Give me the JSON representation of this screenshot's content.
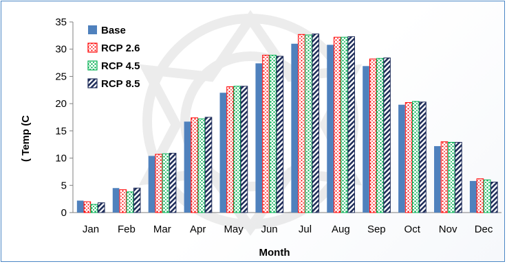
{
  "chart_data": {
    "type": "bar",
    "xlabel": "Month",
    "ylabel": "( Temp (C",
    "ylim": [
      0,
      35
    ],
    "yticks": [
      0,
      5,
      10,
      15,
      20,
      25,
      30,
      35
    ],
    "grid": false,
    "legend_position": "top-left",
    "categories": [
      "Jan",
      "Feb",
      "Mar",
      "Apr",
      "May",
      "Jun",
      "Jul",
      "Aug",
      "Sep",
      "Oct",
      "Nov",
      "Dec"
    ],
    "series": [
      {
        "name": "Base",
        "color": "#4f81bd",
        "pattern": "solid",
        "values": [
          2.2,
          4.5,
          10.4,
          16.7,
          22.0,
          27.4,
          31.0,
          30.8,
          26.9,
          19.8,
          12.2,
          5.8
        ]
      },
      {
        "name": "RCP 2.6",
        "color": "#ff0000",
        "pattern": "dots",
        "values": [
          2.0,
          4.2,
          10.7,
          17.4,
          23.1,
          28.9,
          32.7,
          32.2,
          28.2,
          20.2,
          13.0,
          6.2
        ]
      },
      {
        "name": "RCP 4.5",
        "color": "#00b050",
        "pattern": "dots",
        "values": [
          1.5,
          3.8,
          10.8,
          17.2,
          23.2,
          28.9,
          32.6,
          32.2,
          28.3,
          20.4,
          12.9,
          6.0
        ]
      },
      {
        "name": "RCP 8.5",
        "color": "#1f2d5a",
        "pattern": "diagonal",
        "values": [
          1.8,
          4.5,
          10.9,
          17.5,
          23.2,
          28.7,
          32.8,
          32.3,
          28.4,
          20.3,
          12.9,
          5.6
        ]
      }
    ]
  }
}
